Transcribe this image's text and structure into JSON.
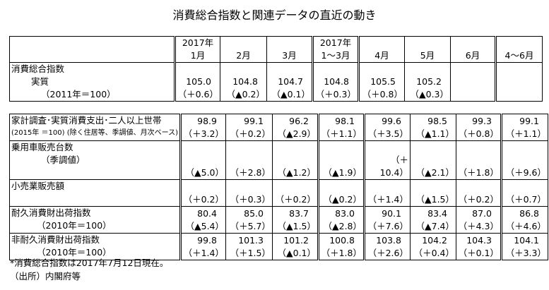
{
  "title": "消費総合指数と関連データの直近の動き",
  "columns": [
    {
      "line1": "2017年",
      "line2": "1月"
    },
    {
      "line1": "",
      "line2": "2月"
    },
    {
      "line1": "",
      "line2": "3月"
    },
    {
      "line1": "2017年",
      "line2": "1～3月"
    },
    {
      "line1": "",
      "line2": "4月"
    },
    {
      "line1": "",
      "line2": "5月"
    },
    {
      "line1": "",
      "line2": "6月"
    },
    {
      "line1": "",
      "line2": "4～6月"
    }
  ],
  "table1": {
    "label1": "消費総合指数",
    "label2": "実質",
    "label3": "（2011年＝100）",
    "values": [
      "105.0",
      "104.8",
      "104.7",
      "104.8",
      "105.5",
      "105.2",
      "",
      ""
    ],
    "changes": [
      "（＋0.6）",
      "（▲0.2）",
      "（▲0.1）",
      "（＋0.3）",
      "（＋0.8）",
      "（▲0.3）",
      "",
      ""
    ]
  },
  "table2": [
    {
      "label1": "家計調査･実質消費支出･二人以上世帯",
      "label2": "(2015年 ＝100) (除く住居等、季調値、月次ベース)",
      "values": [
        "98.9",
        "99.1",
        "96.2",
        "98.1",
        "99.6",
        "98.5",
        "99.3",
        "99.1"
      ],
      "changes": [
        "（＋3.2）",
        "（＋0.2）",
        "（▲2.9）",
        "（＋1.1）",
        "（＋3.5）",
        "（▲1.1）",
        "（＋0.8）",
        "（＋1.1）"
      ]
    },
    {
      "label1": "乗用車販売台数",
      "label2": "（季調値）",
      "values": [
        "",
        "",
        "",
        "",
        "",
        "",
        "",
        ""
      ],
      "changes": [
        "（▲5.0）",
        "（＋2.8）",
        "（▲1.2）",
        "（▲1.9）",
        "（＋10.4）",
        "（▲2.1）",
        "（＋1.8）",
        "（＋9.6）"
      ]
    },
    {
      "label1": "小売業販売額",
      "label2": "",
      "values": [
        "",
        "",
        "",
        "",
        "",
        "",
        "",
        ""
      ],
      "changes": [
        "（＋0.2）",
        "（＋0.3）",
        "（＋0.2）",
        "（▲0.2）",
        "（＋1.4）",
        "（▲1.5）",
        "（＋0.2）",
        "（＋0.7）"
      ]
    },
    {
      "label1": "耐久消費財出荷指数",
      "label2": "（2010年＝100）",
      "values": [
        "80.4",
        "85.0",
        "83.7",
        "83.0",
        "90.1",
        "83.4",
        "87.0",
        "86.8"
      ],
      "changes": [
        "（▲5.4）",
        "（＋5.7）",
        "（▲1.5）",
        "（▲2.8）",
        "（＋7.6）",
        "（▲7.4）",
        "（＋4.3）",
        "（＋4.6）"
      ]
    },
    {
      "label1": "非耐久消費財出荷指数",
      "label2": "（2010年＝100）",
      "values": [
        "99.8",
        "101.3",
        "101.2",
        "100.8",
        "103.8",
        "104.2",
        "104.3",
        "104.1"
      ],
      "changes": [
        "（＋1.4）",
        "（＋1.5）",
        "（▲0.1）",
        "（＋1.8）",
        "（＋2.6）",
        "（＋0.4）",
        "（＋0.1）",
        "（＋3.3）"
      ]
    }
  ],
  "footnote1": "*消費総合指数は2017年7月12日現在。",
  "footnote2": "（出所）内閣府等"
}
